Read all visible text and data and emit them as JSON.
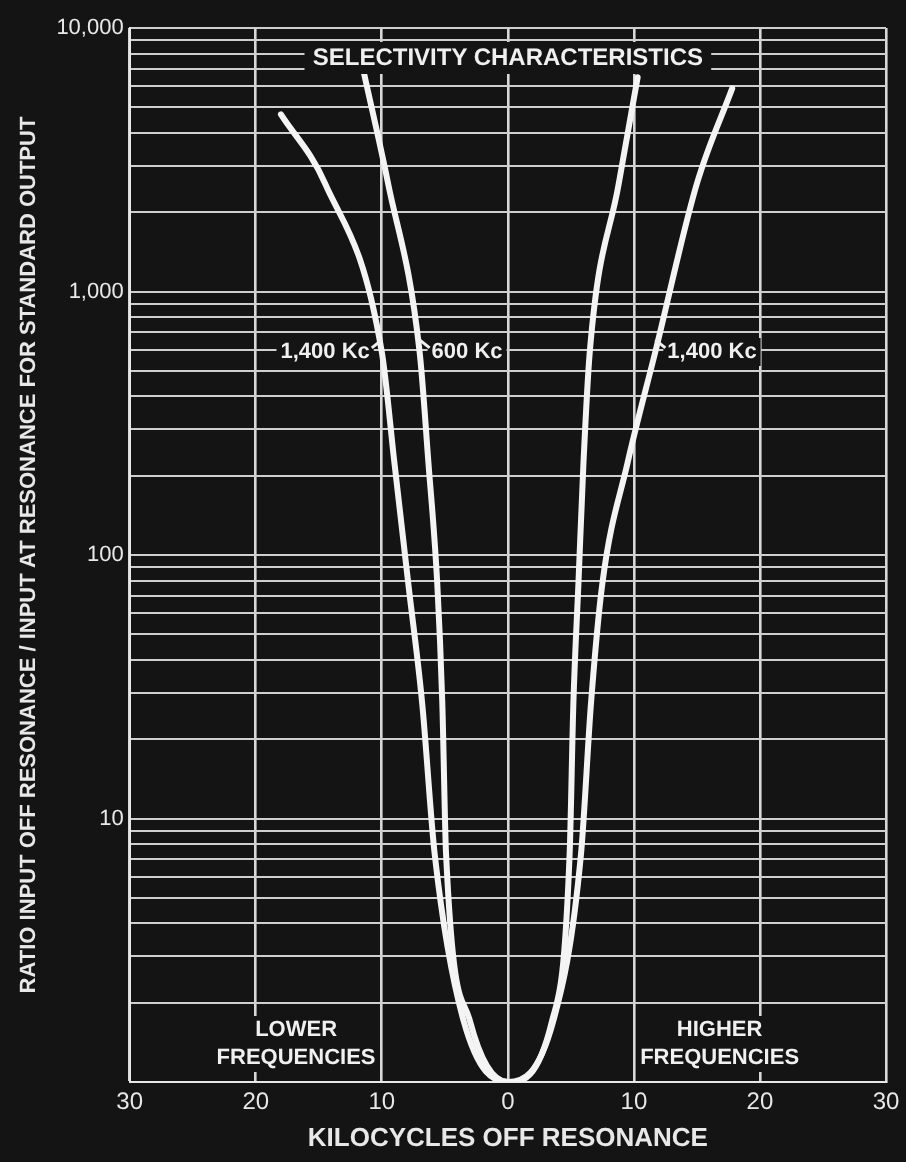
{
  "chart_data": {
    "type": "line",
    "title": "SELECTIVITY CHARACTERISTICS",
    "xlabel": "KILOCYCLES OFF RESONANCE",
    "ylabel": "RATIO INPUT OFF RESONANCE / INPUT AT RESONANCE FOR STANDARD OUTPUT",
    "series": [
      {
        "color": "#f4f4f4",
        "x": [
          -11.4,
          -9.5,
          -7.0,
          -6.3,
          -5.6,
          -5.2,
          -4.9,
          -3.0,
          0,
          3.5,
          4.9,
          5.2,
          5.6,
          6.0,
          6.5,
          8.8,
          10.3
        ],
        "values": [
          6700,
          2570,
          590,
          224,
          78,
          27.5,
          7.3,
          1.7,
          1,
          1.7,
          7.3,
          27.5,
          78,
          224,
          590,
          2570,
          6500
        ]
      },
      {
        "color": "#f4f4f4",
        "x": [
          -18.0,
          -14.5,
          -10.0,
          -9.0,
          -7.9,
          -6.8,
          -5.8,
          -3.5,
          0,
          3.6,
          5.8,
          6.6,
          7.5,
          9.5,
          11.7,
          15.0,
          17.8
        ],
        "values": [
          4700,
          2570,
          590,
          224,
          78,
          27.5,
          7.3,
          1.7,
          1,
          1.7,
          7.3,
          27.5,
          78,
          224,
          590,
          2570,
          5900
        ]
      }
    ],
    "annotations": [
      {
        "text": "1,400 Kc",
        "x": -10,
        "y": 590
      },
      {
        "text": "600 Kc",
        "x": -7,
        "y": 590
      },
      {
        "text": "1,400 Kc",
        "x": 11.7,
        "y": 590
      },
      "LOWER FREQUENCIES",
      "HIGHER FREQUENCIES"
    ],
    "xlim": [
      -30,
      30
    ],
    "xticks": [
      {
        "value": -30,
        "label": "30"
      },
      {
        "value": -20,
        "label": "20"
      },
      {
        "value": -10,
        "label": "10"
      },
      0,
      10,
      20,
      30
    ],
    "ylim": [
      1,
      10000
    ],
    "log": true,
    "yticks": [
      {
        "value": 1,
        "label": null
      },
      {
        "value": 2,
        "label": null
      },
      {
        "value": 3,
        "label": null
      },
      {
        "value": 4,
        "label": null
      },
      {
        "value": 5,
        "label": null
      },
      {
        "value": 6,
        "label": null
      },
      {
        "value": 7,
        "label": null
      },
      {
        "value": 8,
        "label": null
      },
      {
        "value": 9,
        "label": null
      },
      10,
      {
        "value": 20,
        "label": null
      },
      {
        "value": 30,
        "label": null
      },
      {
        "value": 40,
        "label": null
      },
      {
        "value": 50,
        "label": null
      },
      {
        "value": 60,
        "label": null
      },
      {
        "value": 70,
        "label": null
      },
      {
        "value": 80,
        "label": null
      },
      {
        "value": 90,
        "label": null
      },
      100,
      {
        "value": 200,
        "label": null
      },
      {
        "value": 300,
        "label": null
      },
      {
        "value": 400,
        "label": null
      },
      {
        "value": 500,
        "label": null
      },
      {
        "value": 600,
        "label": null
      },
      {
        "value": 700,
        "label": null
      },
      {
        "value": 800,
        "label": null
      },
      {
        "value": 900,
        "label": null
      },
      {
        "value": 1000,
        "label": "1,000"
      },
      {
        "value": 2000,
        "label": null
      },
      {
        "value": 3000,
        "label": null
      },
      {
        "value": 4000,
        "label": null
      },
      {
        "value": 5000,
        "label": null
      },
      {
        "value": 6000,
        "label": null
      },
      {
        "value": 7000,
        "label": null
      },
      {
        "value": 8000,
        "label": null
      },
      {
        "value": 9000,
        "label": null
      },
      {
        "value": 10000,
        "label": "10,000"
      }
    ],
    "grid": true,
    "marker": "none",
    "line_style": "solid",
    "legend": false
  }
}
